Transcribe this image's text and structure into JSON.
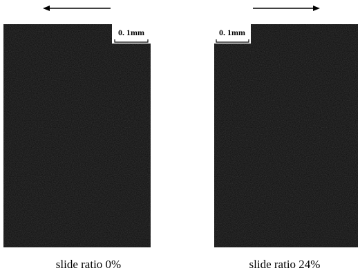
{
  "panels": [
    {
      "scale_label": "0. 1mm",
      "caption": "slide ratio 0%"
    },
    {
      "scale_label": "0. 1mm",
      "caption": "slide ratio 24%"
    }
  ]
}
